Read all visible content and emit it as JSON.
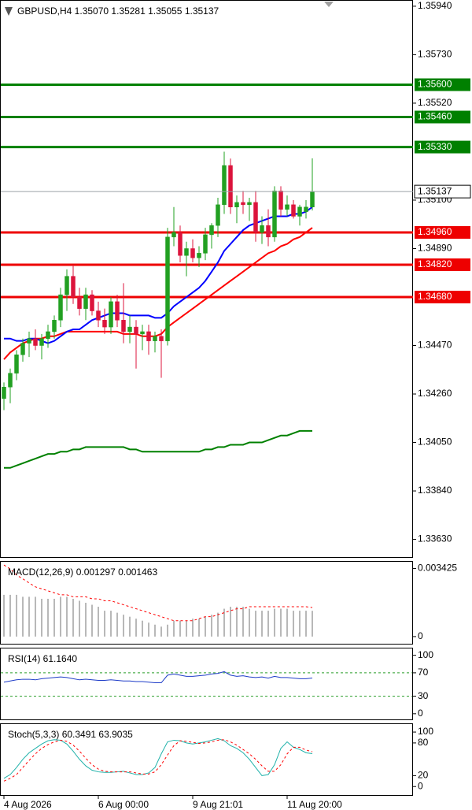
{
  "chart_data": [
    {
      "type": "candlestick",
      "title": "GBPUSD,H4  1.35070 1.35281 1.35055 1.35137",
      "ylim": [
        1.3355,
        1.35967
      ],
      "yticks": [
        {
          "value": 1.3594,
          "label": "1.35940"
        },
        {
          "value": 1.3573,
          "label": "1.35730"
        },
        {
          "value": 1.3552,
          "label": "1.35520"
        },
        {
          "value": 1.351,
          "label": "1.35100"
        },
        {
          "value": 1.3489,
          "label": "1.34890"
        },
        {
          "value": 1.3447,
          "label": "1.34470"
        },
        {
          "value": 1.3426,
          "label": "1.34260"
        },
        {
          "value": 1.3405,
          "label": "1.34050"
        },
        {
          "value": 1.3384,
          "label": "1.33840"
        },
        {
          "value": 1.3363,
          "label": "1.33630"
        }
      ],
      "up_color": "#22a022",
      "down_color": "#dc143c",
      "open": [
        1.3424,
        1.3429,
        1.3435,
        1.3443,
        1.3448,
        1.345,
        1.3447,
        1.345,
        1.3453,
        1.3458,
        1.3469,
        1.3477,
        1.3468,
        1.3463,
        1.3469,
        1.3462,
        1.3458,
        1.3455,
        1.3466,
        1.3458,
        1.3453,
        1.3455,
        1.3452,
        1.3453,
        1.3449,
        1.3451,
        1.3449,
        1.3494,
        1.3496,
        1.3486,
        1.3489,
        1.3485,
        1.3487,
        1.3495,
        1.3499,
        1.3508,
        1.3525,
        1.3507,
        1.3509,
        1.3508,
        1.3509,
        1.3496,
        1.3499,
        1.3494,
        1.3514,
        1.3506,
        1.3508,
        1.3503,
        1.3505,
        1.3507
      ],
      "high": [
        1.3431,
        1.3437,
        1.3445,
        1.345,
        1.3453,
        1.3454,
        1.3452,
        1.3456,
        1.346,
        1.3472,
        1.348,
        1.3482,
        1.3472,
        1.3472,
        1.3471,
        1.3466,
        1.3463,
        1.3468,
        1.3469,
        1.3474,
        1.346,
        1.3458,
        1.3456,
        1.3456,
        1.3453,
        1.3454,
        1.3498,
        1.3507,
        1.3499,
        1.3492,
        1.3493,
        1.349,
        1.3498,
        1.35,
        1.3511,
        1.3531,
        1.3528,
        1.3512,
        1.3514,
        1.3511,
        1.3514,
        1.3503,
        1.3506,
        1.3516,
        1.3516,
        1.3512,
        1.351,
        1.3508,
        1.351,
        1.35281
      ],
      "low": [
        1.3419,
        1.3422,
        1.3432,
        1.344,
        1.3442,
        1.3445,
        1.3441,
        1.3446,
        1.345,
        1.3455,
        1.3462,
        1.3465,
        1.346,
        1.3458,
        1.346,
        1.3455,
        1.3452,
        1.3452,
        1.3455,
        1.3448,
        1.3448,
        1.3437,
        1.3445,
        1.3443,
        1.3444,
        1.3433,
        1.3447,
        1.349,
        1.3483,
        1.3477,
        1.3483,
        1.3481,
        1.3484,
        1.3489,
        1.3494,
        1.3504,
        1.3504,
        1.35,
        1.3504,
        1.3501,
        1.3492,
        1.3491,
        1.349,
        1.3492,
        1.3503,
        1.3503,
        1.3502,
        1.3499,
        1.3502,
        1.35055
      ],
      "close": [
        1.3429,
        1.3435,
        1.3443,
        1.3448,
        1.345,
        1.3447,
        1.345,
        1.3453,
        1.3458,
        1.3469,
        1.3477,
        1.3468,
        1.3463,
        1.3469,
        1.3462,
        1.3458,
        1.3455,
        1.3466,
        1.3458,
        1.3453,
        1.3455,
        1.3452,
        1.3453,
        1.3449,
        1.3451,
        1.3449,
        1.3494,
        1.3496,
        1.3486,
        1.3489,
        1.3485,
        1.3487,
        1.3495,
        1.3499,
        1.3508,
        1.3525,
        1.3507,
        1.3509,
        1.3508,
        1.3509,
        1.3496,
        1.3499,
        1.3494,
        1.3514,
        1.3506,
        1.3508,
        1.3503,
        1.3507,
        1.3507,
        1.35137
      ],
      "series": [
        {
          "color": "#008000",
          "width": 2,
          "values": [
            1.3394,
            1.3394,
            1.3395,
            1.3396,
            1.3397,
            1.3398,
            1.3399,
            1.34,
            1.34,
            1.3401,
            1.3401,
            1.3402,
            1.3402,
            1.3403,
            1.3403,
            1.3403,
            1.3403,
            1.3403,
            1.3403,
            1.3403,
            1.3402,
            1.3402,
            1.3401,
            1.3401,
            1.3401,
            1.3401,
            1.3401,
            1.3401,
            1.3401,
            1.3401,
            1.3401,
            1.3401,
            1.3402,
            1.3402,
            1.3403,
            1.3403,
            1.3404,
            1.3404,
            1.3404,
            1.3405,
            1.3405,
            1.3405,
            1.3406,
            1.3407,
            1.3408,
            1.3408,
            1.3409,
            1.341,
            1.341,
            1.341
          ]
        },
        {
          "color": "#ff0000",
          "width": 2,
          "values": [
            1.3441,
            1.3444,
            1.3446,
            1.3448,
            1.3449,
            1.345,
            1.345,
            1.3451,
            1.3451,
            1.3452,
            1.3453,
            1.3453,
            1.3453,
            1.3453,
            1.3453,
            1.3453,
            1.3453,
            1.3453,
            1.3453,
            1.3452,
            1.3452,
            1.3452,
            1.3451,
            1.3451,
            1.3451,
            1.3452,
            1.3455,
            1.3457,
            1.3459,
            1.3461,
            1.3463,
            1.3465,
            1.3467,
            1.3469,
            1.3471,
            1.3473,
            1.3475,
            1.3477,
            1.3479,
            1.3481,
            1.3483,
            1.3485,
            1.3487,
            1.3488,
            1.349,
            1.3491,
            1.3493,
            1.3494,
            1.3496,
            1.3498
          ]
        },
        {
          "color": "#0000ff",
          "width": 2,
          "values": [
            1.345,
            1.345,
            1.3449,
            1.3449,
            1.345,
            1.345,
            1.3449,
            1.3448,
            1.3449,
            1.3451,
            1.3453,
            1.3454,
            1.3454,
            1.3456,
            1.3458,
            1.3459,
            1.346,
            1.3461,
            1.3461,
            1.3461,
            1.346,
            1.346,
            1.346,
            1.346,
            1.3459,
            1.3459,
            1.3461,
            1.3464,
            1.3466,
            1.3468,
            1.347,
            1.3472,
            1.3475,
            1.3479,
            1.3483,
            1.3488,
            1.3491,
            1.3494,
            1.3497,
            1.3499,
            1.35,
            1.3501,
            1.3502,
            1.3503,
            1.3503,
            1.3503,
            1.3504,
            1.3504,
            1.3505,
            1.3507
          ]
        }
      ],
      "levels": [
        {
          "value": 1.356,
          "label": "1.35600",
          "color": "#008000"
        },
        {
          "value": 1.3546,
          "label": "1.35460",
          "color": "#008000"
        },
        {
          "value": 1.3533,
          "label": "1.35330",
          "color": "#008000"
        },
        {
          "value": 1.3496,
          "label": "1.34960",
          "color": "#ee0000"
        },
        {
          "value": 1.3482,
          "label": "1.34820",
          "color": "#ee0000"
        },
        {
          "value": 1.3468,
          "label": "1.34680",
          "color": "#ee0000"
        }
      ],
      "current": 1.35137
    },
    {
      "type": "indicator",
      "title": "MACD(12,26,9) 0.001297 0.001463",
      "ylim": [
        -0.0004,
        0.0038
      ],
      "yticks": [
        0.003425,
        0
      ],
      "series": [
        {
          "style": "bar",
          "color": "#a0a0a0",
          "values": [
            0.0021,
            0.0021,
            0.0021,
            0.002,
            0.002,
            0.002,
            0.0019,
            0.0019,
            0.0019,
            0.002,
            0.002,
            0.0019,
            0.0018,
            0.0017,
            0.0016,
            0.0015,
            0.0013,
            0.0013,
            0.0012,
            0.0011,
            0.001,
            0.0009,
            0.0008,
            0.0007,
            0.0006,
            0.0005,
            0.0006,
            0.0008,
            0.0008,
            0.0008,
            0.0009,
            0.0009,
            0.001,
            0.0011,
            0.0012,
            0.0014,
            0.0015,
            0.0015,
            0.0015,
            0.0014,
            0.0013,
            0.0013,
            0.0013,
            0.0014,
            0.0014,
            0.0014,
            0.0013,
            0.0013,
            0.0013,
            0.001297
          ]
        },
        {
          "style": "dashed",
          "color": "#ff0000",
          "values": [
            0.0036,
            0.0034,
            0.0031,
            0.0029,
            0.0027,
            0.0025,
            0.0024,
            0.0023,
            0.0022,
            0.0021,
            0.0021,
            0.002,
            0.002,
            0.002,
            0.0019,
            0.0019,
            0.0018,
            0.0018,
            0.0017,
            0.0016,
            0.0015,
            0.0014,
            0.0013,
            0.0012,
            0.0011,
            0.001,
            0.0009,
            0.0008,
            0.0008,
            0.0008,
            0.0008,
            0.0009,
            0.001,
            0.001,
            0.0011,
            0.0012,
            0.0013,
            0.0014,
            0.0014,
            0.0015,
            0.0015,
            0.0015,
            0.0015,
            0.0015,
            0.0015,
            0.0015,
            0.0015,
            0.0015,
            0.0015,
            0.001463
          ]
        }
      ]
    },
    {
      "type": "indicator",
      "title": "RSI(14) 61.1640",
      "ylim": [
        -11,
        113
      ],
      "yticks": [
        100,
        70,
        30,
        0
      ],
      "levels": [
        70,
        30
      ],
      "series": [
        {
          "style": "line",
          "color": "#1e3cc8",
          "values": [
            54,
            56,
            58,
            59,
            59,
            58,
            60,
            61,
            62,
            63,
            62,
            60,
            58,
            59,
            58,
            57,
            57,
            58,
            57,
            56,
            56,
            55,
            55,
            54,
            53,
            53,
            66,
            68,
            66,
            64,
            64,
            65,
            66,
            68,
            69,
            72,
            66,
            64,
            65,
            63,
            62,
            63,
            61,
            64,
            62,
            62,
            61,
            60,
            60,
            61.164
          ]
        }
      ]
    },
    {
      "type": "indicator",
      "title": "Stoch(5,3,3) 60.3491 63.9035",
      "ylim": [
        -17,
        116
      ],
      "yticks": [
        100,
        80,
        20,
        0
      ],
      "categories": [
        "4 Aug 2026",
        null,
        null,
        null,
        null,
        null,
        null,
        null,
        null,
        null,
        null,
        null,
        null,
        null,
        null,
        "6 Aug 00:00",
        null,
        null,
        null,
        null,
        null,
        null,
        null,
        null,
        null,
        null,
        null,
        null,
        null,
        null,
        "9 Aug 21:01",
        null,
        null,
        null,
        null,
        null,
        null,
        null,
        null,
        null,
        null,
        null,
        null,
        null,
        null,
        "11 Aug 20:00",
        null,
        null,
        null,
        null
      ],
      "series": [
        {
          "style": "line",
          "color": "#20b2aa",
          "values": [
            15,
            22,
            35,
            50,
            62,
            70,
            78,
            84,
            86,
            85,
            78,
            65,
            50,
            38,
            30,
            27,
            26,
            26,
            27,
            28,
            25,
            22,
            22,
            25,
            35,
            60,
            82,
            85,
            84,
            80,
            78,
            80,
            82,
            85,
            88,
            84,
            75,
            70,
            62,
            50,
            35,
            20,
            22,
            40,
            70,
            82,
            72,
            68,
            62,
            60.3491
          ]
        },
        {
          "style": "dashed",
          "color": "#ff0000",
          "values": [
            10,
            15,
            22,
            35,
            48,
            60,
            70,
            77,
            82,
            85,
            83,
            76,
            65,
            52,
            40,
            32,
            28,
            27,
            27,
            27,
            27,
            25,
            23,
            23,
            27,
            40,
            58,
            75,
            84,
            83,
            81,
            79,
            80,
            82,
            85,
            86,
            82,
            76,
            68,
            60,
            50,
            38,
            28,
            28,
            40,
            60,
            72,
            72,
            67,
            63.9035
          ]
        }
      ]
    }
  ]
}
